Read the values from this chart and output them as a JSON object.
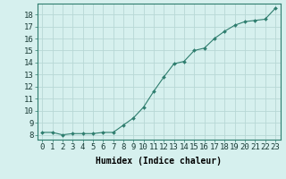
{
  "x": [
    0,
    1,
    2,
    3,
    4,
    5,
    6,
    7,
    8,
    9,
    10,
    11,
    12,
    13,
    14,
    15,
    16,
    17,
    18,
    19,
    20,
    21,
    22,
    23
  ],
  "y": [
    8.2,
    8.2,
    8.0,
    8.1,
    8.1,
    8.1,
    8.2,
    8.2,
    8.8,
    9.4,
    10.3,
    11.6,
    12.8,
    13.9,
    14.1,
    15.0,
    15.2,
    16.0,
    16.6,
    17.1,
    17.4,
    17.5,
    17.6,
    18.5
  ],
  "line_color": "#2e7d6e",
  "marker_color": "#2e7d6e",
  "bg_color": "#d6f0ee",
  "grid_color": "#b8d8d5",
  "xlabel": "Humidex (Indice chaleur)",
  "xlabel_fontsize": 7,
  "ylabel_ticks": [
    8,
    9,
    10,
    11,
    12,
    13,
    14,
    15,
    16,
    17,
    18
  ],
  "xtick_labels": [
    "0",
    "1",
    "2",
    "3",
    "4",
    "5",
    "6",
    "7",
    "8",
    "9",
    "10",
    "11",
    "12",
    "13",
    "14",
    "15",
    "16",
    "17",
    "18",
    "19",
    "20",
    "21",
    "22",
    "23"
  ],
  "xlim": [
    -0.5,
    23.5
  ],
  "ylim": [
    7.6,
    18.9
  ],
  "tick_fontsize": 6.5,
  "figsize": [
    3.2,
    2.0
  ],
  "dpi": 100
}
